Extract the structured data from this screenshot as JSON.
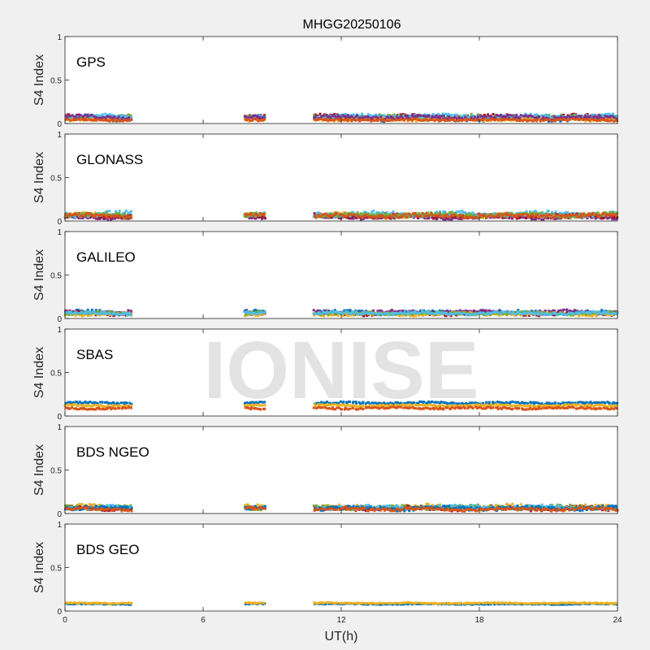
{
  "figure": {
    "title": "MHGG20250106",
    "watermark": "IONISE",
    "xlabel": "UT(h)",
    "xticks": [
      0,
      6,
      12,
      18,
      24
    ],
    "xlim": [
      0,
      24
    ],
    "background": "#f0f0f0",
    "axes_background": "#ffffff"
  },
  "chart_data": {
    "type": "scatter",
    "ylabel": "S4 Index",
    "ylim": [
      0,
      1
    ],
    "yticks": [
      0,
      0.5,
      1
    ],
    "panels": [
      {
        "name": "GPS",
        "constellation": "GPS",
        "segments": [
          [
            0,
            2.9
          ],
          [
            7.8,
            8.7
          ],
          [
            10.8,
            24
          ]
        ],
        "series": [
          {
            "color": "#0072bd",
            "base": 0.06,
            "spread": 0.05
          },
          {
            "color": "#a2142f",
            "base": 0.08,
            "spread": 0.04
          },
          {
            "color": "#77ac30",
            "base": 0.07,
            "spread": 0.05
          },
          {
            "color": "#edb120",
            "base": 0.05,
            "spread": 0.03
          },
          {
            "color": "#4dbeee",
            "base": 0.08,
            "spread": 0.04
          },
          {
            "color": "#7e2f8e",
            "base": 0.07,
            "spread": 0.04
          },
          {
            "color": "#d95319",
            "base": 0.04,
            "spread": 0.02
          }
        ]
      },
      {
        "name": "GLONASS",
        "constellation": "GLONASS",
        "segments": [
          [
            0,
            2.9
          ],
          [
            7.8,
            8.7
          ],
          [
            10.8,
            24
          ]
        ],
        "series": [
          {
            "color": "#edb120",
            "base": 0.06,
            "spread": 0.05
          },
          {
            "color": "#7e2f8e",
            "base": 0.04,
            "spread": 0.03
          },
          {
            "color": "#a2142f",
            "base": 0.06,
            "spread": 0.04
          },
          {
            "color": "#4dbeee",
            "base": 0.08,
            "spread": 0.05
          },
          {
            "color": "#77ac30",
            "base": 0.07,
            "spread": 0.04
          },
          {
            "color": "#d95319",
            "base": 0.06,
            "spread": 0.04
          }
        ]
      },
      {
        "name": "GALILEO",
        "constellation": "GALILEO",
        "segments": [
          [
            0,
            2.9
          ],
          [
            7.8,
            8.7
          ],
          [
            10.8,
            24
          ]
        ],
        "series": [
          {
            "color": "#0072bd",
            "base": 0.07,
            "spread": 0.04
          },
          {
            "color": "#a2142f",
            "base": 0.06,
            "spread": 0.04
          },
          {
            "color": "#7e2f8e",
            "base": 0.07,
            "spread": 0.04
          },
          {
            "color": "#edb120",
            "base": 0.05,
            "spread": 0.03
          },
          {
            "color": "#77ac30",
            "base": 0.06,
            "spread": 0.03
          },
          {
            "color": "#4dbeee",
            "base": 0.06,
            "spread": 0.03
          }
        ]
      },
      {
        "name": "SBAS",
        "constellation": "SBAS",
        "segments": [
          [
            0,
            2.9
          ],
          [
            7.8,
            8.7
          ],
          [
            10.8,
            24
          ]
        ],
        "series": [
          {
            "color": "#0072bd",
            "base": 0.15,
            "spread": 0.02
          },
          {
            "color": "#edb120",
            "base": 0.12,
            "spread": 0.02
          },
          {
            "color": "#d95319",
            "base": 0.09,
            "spread": 0.02
          }
        ]
      },
      {
        "name": "BDS NGEO",
        "constellation": "BDS NGEO",
        "segments": [
          [
            0,
            2.9
          ],
          [
            7.8,
            8.7
          ],
          [
            10.8,
            24
          ]
        ],
        "series": [
          {
            "color": "#edb120",
            "base": 0.07,
            "spread": 0.05
          },
          {
            "color": "#a2142f",
            "base": 0.06,
            "spread": 0.04
          },
          {
            "color": "#77ac30",
            "base": 0.07,
            "spread": 0.04
          },
          {
            "color": "#4dbeee",
            "base": 0.07,
            "spread": 0.04
          },
          {
            "color": "#0072bd",
            "base": 0.06,
            "spread": 0.04
          },
          {
            "color": "#d95319",
            "base": 0.05,
            "spread": 0.03
          }
        ]
      },
      {
        "name": "BDS GEO",
        "constellation": "BDS GEO",
        "segments": [
          [
            0,
            2.9
          ],
          [
            7.8,
            8.7
          ],
          [
            10.8,
            24
          ]
        ],
        "series": [
          {
            "color": "#0072bd",
            "base": 0.08,
            "spread": 0.01
          },
          {
            "color": "#edb120",
            "base": 0.09,
            "spread": 0.01
          }
        ]
      }
    ]
  }
}
